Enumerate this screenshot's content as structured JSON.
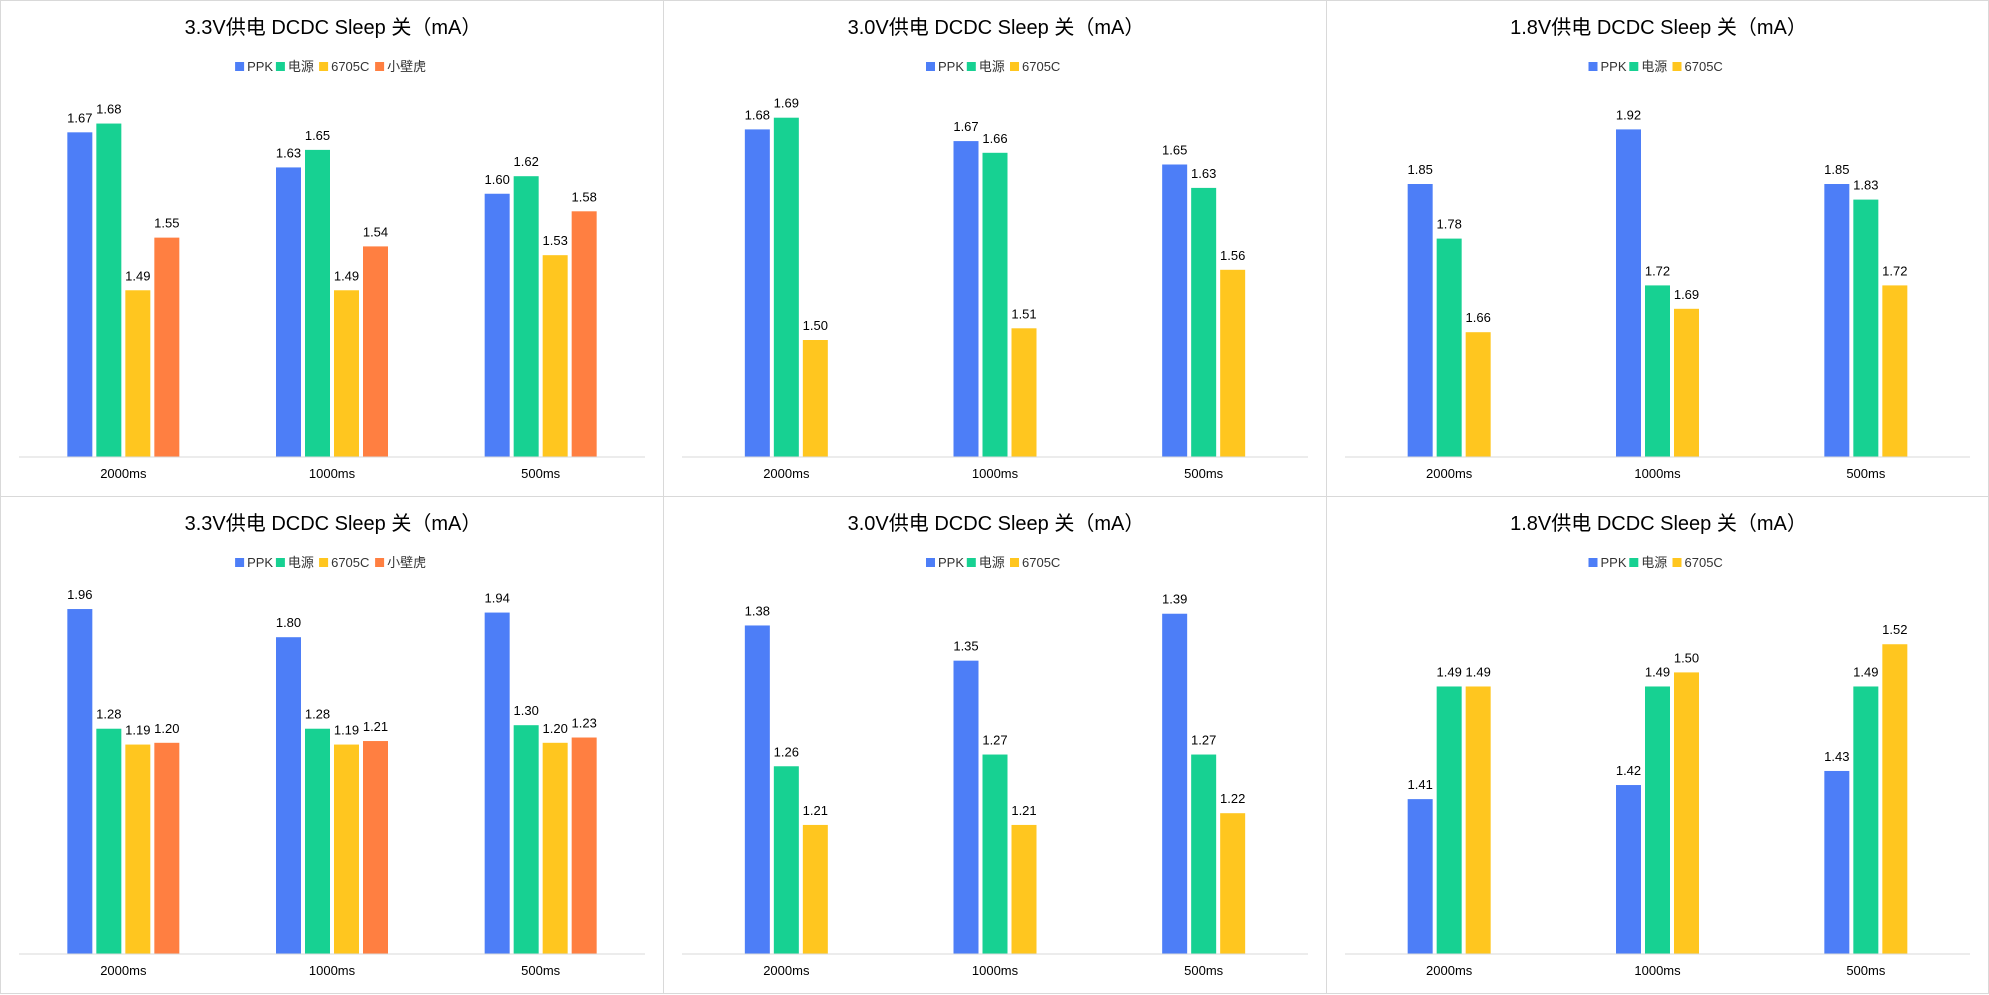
{
  "colors": {
    "PPK": "#4d7ef7",
    "电源": "#17d192",
    "6705C": "#ffc61f",
    "小壁虎": "#ff7f41",
    "axis": "#d9d9d9",
    "text": "#000000"
  },
  "chart_data": [
    {
      "type": "bar",
      "title": "3.3V供电 DCDC  Sleep 关（mA）",
      "categories": [
        "2000ms",
        "1000ms",
        "500ms"
      ],
      "series": [
        {
          "name": "PPK",
          "values": [
            1.67,
            1.63,
            1.6
          ]
        },
        {
          "name": "电源",
          "values": [
            1.68,
            1.65,
            1.62
          ]
        },
        {
          "name": "6705C",
          "values": [
            1.49,
            1.49,
            1.53
          ]
        },
        {
          "name": "小壁虎",
          "values": [
            1.55,
            1.54,
            1.58
          ]
        }
      ],
      "ylim": [
        1.3,
        1.7
      ],
      "legend": "top",
      "grid": false
    },
    {
      "type": "bar",
      "title": "3.0V供电 DCDC  Sleep 关（mA）",
      "categories": [
        "2000ms",
        "1000ms",
        "500ms"
      ],
      "series": [
        {
          "name": "PPK",
          "values": [
            1.68,
            1.67,
            1.65
          ]
        },
        {
          "name": "电源",
          "values": [
            1.69,
            1.66,
            1.63
          ]
        },
        {
          "name": "6705C",
          "values": [
            1.5,
            1.51,
            1.56
          ]
        }
      ],
      "ylim": [
        1.4,
        1.7
      ],
      "legend": "top",
      "grid": false
    },
    {
      "type": "bar",
      "title": "1.8V供电 DCDC  Sleep 关（mA）",
      "categories": [
        "2000ms",
        "1000ms",
        "500ms"
      ],
      "series": [
        {
          "name": "PPK",
          "values": [
            1.85,
            1.92,
            1.85
          ]
        },
        {
          "name": "电源",
          "values": [
            1.78,
            1.72,
            1.83
          ]
        },
        {
          "name": "6705C",
          "values": [
            1.66,
            1.69,
            1.72
          ]
        }
      ],
      "ylim": [
        1.5,
        1.95
      ],
      "legend": "top",
      "grid": false
    },
    {
      "type": "bar",
      "title": "3.3V供电 DCDC  Sleep 关（mA）",
      "categories": [
        "2000ms",
        "1000ms",
        "500ms"
      ],
      "series": [
        {
          "name": "PPK",
          "values": [
            1.96,
            1.8,
            1.94
          ]
        },
        {
          "name": "电源",
          "values": [
            1.28,
            1.28,
            1.3
          ]
        },
        {
          "name": "6705C",
          "values": [
            1.19,
            1.19,
            1.2
          ]
        },
        {
          "name": "小壁虎",
          "values": [
            1.2,
            1.21,
            1.23
          ]
        }
      ],
      "ylim": [
        0.0,
        2.0
      ],
      "legend": "top",
      "grid": false
    },
    {
      "type": "bar",
      "title": "3.0V供电 DCDC  Sleep 关（mA）",
      "categories": [
        "2000ms",
        "1000ms",
        "500ms"
      ],
      "series": [
        {
          "name": "PPK",
          "values": [
            1.38,
            1.35,
            1.39
          ]
        },
        {
          "name": "电源",
          "values": [
            1.26,
            1.27,
            1.27
          ]
        },
        {
          "name": "6705C",
          "values": [
            1.21,
            1.21,
            1.22
          ]
        }
      ],
      "ylim": [
        1.1,
        1.4
      ],
      "legend": "top",
      "grid": false
    },
    {
      "type": "bar",
      "title": "1.8V供电 DCDC  Sleep 关（mA）",
      "categories": [
        "2000ms",
        "1000ms",
        "500ms"
      ],
      "series": [
        {
          "name": "PPK",
          "values": [
            1.41,
            1.42,
            1.43
          ]
        },
        {
          "name": "电源",
          "values": [
            1.49,
            1.49,
            1.49
          ]
        },
        {
          "name": "6705C",
          "values": [
            1.49,
            1.5,
            1.52
          ]
        }
      ],
      "ylim": [
        1.3,
        1.55
      ],
      "legend": "top",
      "grid": false
    }
  ]
}
